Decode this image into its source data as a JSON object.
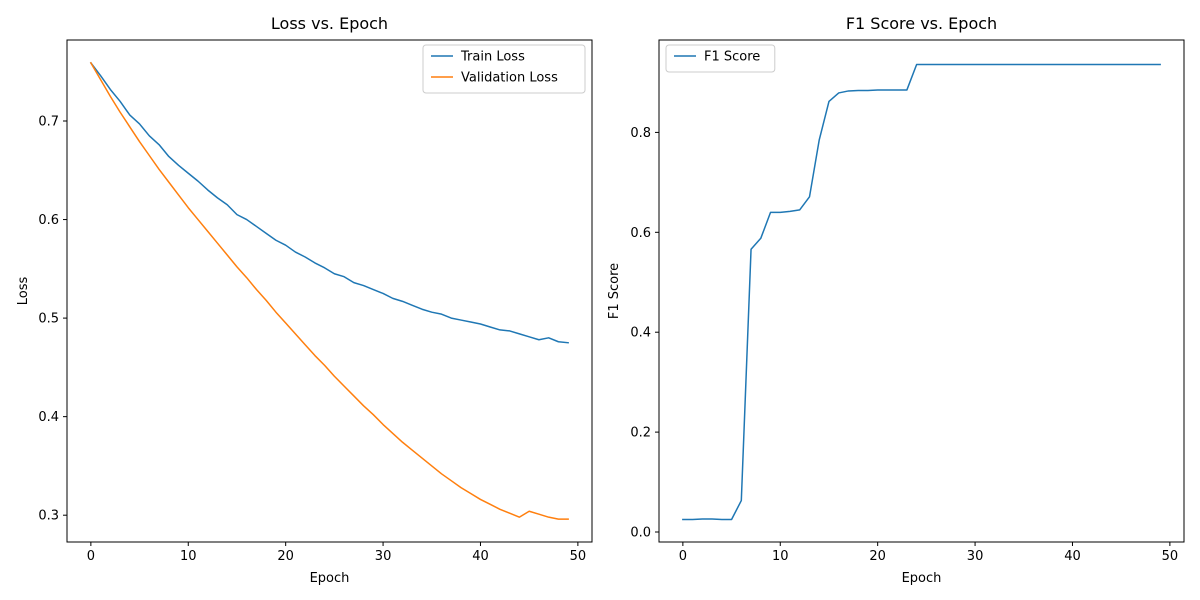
{
  "chart_data": [
    {
      "type": "line",
      "title": "Loss vs. Epoch",
      "xlabel": "Epoch",
      "ylabel": "Loss",
      "xlim": [
        -2.45,
        51.45
      ],
      "ylim": [
        0.2728,
        0.7822
      ],
      "xticks": [
        0,
        10,
        20,
        30,
        40,
        50
      ],
      "xtick_labels": [
        "0",
        "10",
        "20",
        "30",
        "40",
        "50"
      ],
      "yticks": [
        0.3,
        0.4,
        0.5,
        0.6,
        0.7
      ],
      "ytick_labels": [
        "0.3",
        "0.4",
        "0.5",
        "0.6",
        "0.7"
      ],
      "legend_position": "upper right",
      "grid": false,
      "series": [
        {
          "name": "Train Loss",
          "color": "#1f77b4",
          "x": [
            0,
            1,
            2,
            3,
            4,
            5,
            6,
            7,
            8,
            9,
            10,
            11,
            12,
            13,
            14,
            15,
            16,
            17,
            18,
            19,
            20,
            21,
            22,
            23,
            24,
            25,
            26,
            27,
            28,
            29,
            30,
            31,
            32,
            33,
            34,
            35,
            36,
            37,
            38,
            39,
            40,
            41,
            42,
            43,
            44,
            45,
            46,
            47,
            48,
            49
          ],
          "values": [
            0.759,
            0.746,
            0.732,
            0.72,
            0.706,
            0.697,
            0.685,
            0.676,
            0.664,
            0.655,
            0.647,
            0.639,
            0.63,
            0.622,
            0.615,
            0.605,
            0.6,
            0.593,
            0.586,
            0.579,
            0.574,
            0.567,
            0.562,
            0.556,
            0.551,
            0.545,
            0.542,
            0.536,
            0.533,
            0.529,
            0.525,
            0.52,
            0.517,
            0.513,
            0.509,
            0.506,
            0.504,
            0.5,
            0.498,
            0.496,
            0.494,
            0.491,
            0.488,
            0.487,
            0.484,
            0.481,
            0.478,
            0.48,
            0.476,
            0.475
          ]
        },
        {
          "name": "Validation Loss",
          "color": "#ff7f0e",
          "x": [
            0,
            1,
            2,
            3,
            4,
            5,
            6,
            7,
            8,
            9,
            10,
            11,
            12,
            13,
            14,
            15,
            16,
            17,
            18,
            19,
            20,
            21,
            22,
            23,
            24,
            25,
            26,
            27,
            28,
            29,
            30,
            31,
            32,
            33,
            34,
            35,
            36,
            37,
            38,
            39,
            40,
            41,
            42,
            43,
            44,
            45,
            46,
            47,
            48,
            49
          ],
          "values": [
            0.759,
            0.742,
            0.725,
            0.709,
            0.694,
            0.679,
            0.665,
            0.651,
            0.638,
            0.625,
            0.612,
            0.6,
            0.588,
            0.576,
            0.564,
            0.552,
            0.541,
            0.529,
            0.518,
            0.506,
            0.495,
            0.484,
            0.473,
            0.462,
            0.452,
            0.441,
            0.431,
            0.421,
            0.411,
            0.402,
            0.392,
            0.383,
            0.374,
            0.366,
            0.358,
            0.35,
            0.342,
            0.335,
            0.328,
            0.322,
            0.316,
            0.311,
            0.306,
            0.302,
            0.298,
            0.304,
            0.301,
            0.298,
            0.296,
            0.296
          ]
        }
      ]
    },
    {
      "type": "line",
      "title": "F1 Score vs. Epoch",
      "xlabel": "Epoch",
      "ylabel": "F1 Score",
      "xlim": [
        -2.45,
        51.45
      ],
      "ylim": [
        -0.02,
        0.985
      ],
      "xticks": [
        0,
        10,
        20,
        30,
        40,
        50
      ],
      "xtick_labels": [
        "0",
        "10",
        "20",
        "30",
        "40",
        "50"
      ],
      "yticks": [
        0.0,
        0.2,
        0.4,
        0.6,
        0.8
      ],
      "ytick_labels": [
        "0.0",
        "0.2",
        "0.4",
        "0.6",
        "0.8"
      ],
      "legend_position": "upper left",
      "grid": false,
      "series": [
        {
          "name": "F1 Score",
          "color": "#1f77b4",
          "x": [
            0,
            1,
            2,
            3,
            4,
            5,
            6,
            7,
            8,
            9,
            10,
            11,
            12,
            13,
            14,
            15,
            16,
            17,
            18,
            19,
            20,
            21,
            22,
            23,
            24,
            25,
            26,
            27,
            28,
            29,
            30,
            31,
            32,
            33,
            34,
            35,
            36,
            37,
            38,
            39,
            40,
            41,
            42,
            43,
            44,
            45,
            46,
            47,
            48,
            49
          ],
          "values": [
            0.025,
            0.025,
            0.026,
            0.026,
            0.025,
            0.025,
            0.063,
            0.566,
            0.588,
            0.64,
            0.64,
            0.642,
            0.645,
            0.671,
            0.785,
            0.862,
            0.879,
            0.883,
            0.884,
            0.884,
            0.885,
            0.885,
            0.885,
            0.885,
            0.936,
            0.936,
            0.936,
            0.936,
            0.936,
            0.936,
            0.936,
            0.936,
            0.936,
            0.936,
            0.936,
            0.936,
            0.936,
            0.936,
            0.936,
            0.936,
            0.936,
            0.936,
            0.936,
            0.936,
            0.936,
            0.936,
            0.936,
            0.936,
            0.936,
            0.936
          ]
        }
      ]
    }
  ]
}
